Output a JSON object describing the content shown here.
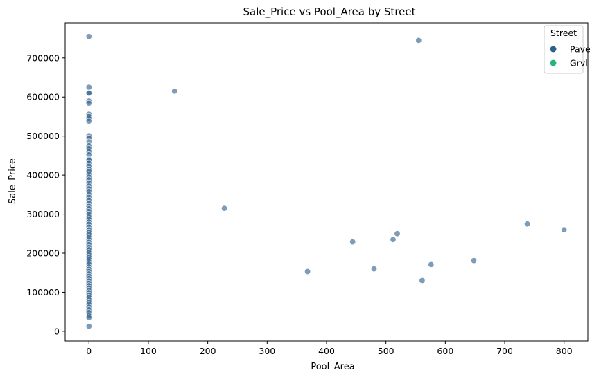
{
  "chart_data": {
    "type": "scatter",
    "title": "Sale_Price vs Pool_Area by Street",
    "xlabel": "Pool_Area",
    "ylabel": "Sale_Price",
    "xlim": [
      -40,
      840
    ],
    "ylim": [
      -25000,
      790000
    ],
    "xticks": [
      0,
      100,
      200,
      300,
      400,
      500,
      600,
      700,
      800
    ],
    "yticks": [
      0,
      100000,
      200000,
      300000,
      400000,
      500000,
      600000,
      700000
    ],
    "grid": false,
    "legend": {
      "title": "Street",
      "placement": "top-right",
      "entries": [
        {
          "label": "Pave",
          "color": "#2f5f8a"
        },
        {
          "label": "Grvl",
          "color": "#2ab27b"
        }
      ]
    },
    "series": [
      {
        "name": "Pave",
        "color": "#2f5f8a",
        "points": [
          [
            0,
            755000
          ],
          [
            0,
            625000
          ],
          [
            0,
            611000
          ],
          [
            0,
            610000
          ],
          [
            0,
            590000
          ],
          [
            0,
            584000
          ],
          [
            0,
            556000
          ],
          [
            0,
            550000
          ],
          [
            0,
            545000
          ],
          [
            0,
            538000
          ],
          [
            0,
            501000
          ],
          [
            0,
            495000
          ],
          [
            0,
            485000
          ],
          [
            0,
            475000
          ],
          [
            0,
            468000
          ],
          [
            0,
            460000
          ],
          [
            0,
            452000
          ],
          [
            0,
            440000
          ],
          [
            0,
            438000
          ],
          [
            0,
            430000
          ],
          [
            0,
            423000
          ],
          [
            0,
            415000
          ],
          [
            0,
            410000
          ],
          [
            0,
            402000
          ],
          [
            0,
            395000
          ],
          [
            0,
            388000
          ],
          [
            0,
            380000
          ],
          [
            0,
            372000
          ],
          [
            0,
            365000
          ],
          [
            0,
            358000
          ],
          [
            0,
            350000
          ],
          [
            0,
            343000
          ],
          [
            0,
            336000
          ],
          [
            0,
            328000
          ],
          [
            0,
            320000
          ],
          [
            0,
            314000
          ],
          [
            0,
            307000
          ],
          [
            0,
            300000
          ],
          [
            0,
            293000
          ],
          [
            0,
            287000
          ],
          [
            0,
            280000
          ],
          [
            0,
            274000
          ],
          [
            0,
            267000
          ],
          [
            0,
            260000
          ],
          [
            0,
            254000
          ],
          [
            0,
            248000
          ],
          [
            0,
            241000
          ],
          [
            0,
            235000
          ],
          [
            0,
            228000
          ],
          [
            0,
            222000
          ],
          [
            0,
            215000
          ],
          [
            0,
            209000
          ],
          [
            0,
            202000
          ],
          [
            0,
            196000
          ],
          [
            0,
            190000
          ],
          [
            0,
            184000
          ],
          [
            0,
            178000
          ],
          [
            0,
            172000
          ],
          [
            0,
            165000
          ],
          [
            0,
            159000
          ],
          [
            0,
            153000
          ],
          [
            0,
            147000
          ],
          [
            0,
            141000
          ],
          [
            0,
            135000
          ],
          [
            0,
            129000
          ],
          [
            0,
            123000
          ],
          [
            0,
            117000
          ],
          [
            0,
            111000
          ],
          [
            0,
            105000
          ],
          [
            0,
            99000
          ],
          [
            0,
            93000
          ],
          [
            0,
            87000
          ],
          [
            0,
            81000
          ],
          [
            0,
            75000
          ],
          [
            0,
            69000
          ],
          [
            0,
            62000
          ],
          [
            0,
            55000
          ],
          [
            0,
            48000
          ],
          [
            0,
            40000
          ],
          [
            0,
            35000
          ],
          [
            0,
            13000
          ],
          [
            144,
            615000
          ],
          [
            228,
            315000
          ],
          [
            368,
            153000
          ],
          [
            444,
            229000
          ],
          [
            480,
            160000
          ],
          [
            512,
            235000
          ],
          [
            519,
            250000
          ],
          [
            555,
            745000
          ],
          [
            561,
            130000
          ],
          [
            576,
            171000
          ],
          [
            648,
            181000
          ],
          [
            738,
            275000
          ],
          [
            800,
            260000
          ]
        ]
      },
      {
        "name": "Grvl",
        "color": "#2ab27b",
        "points": []
      }
    ]
  }
}
